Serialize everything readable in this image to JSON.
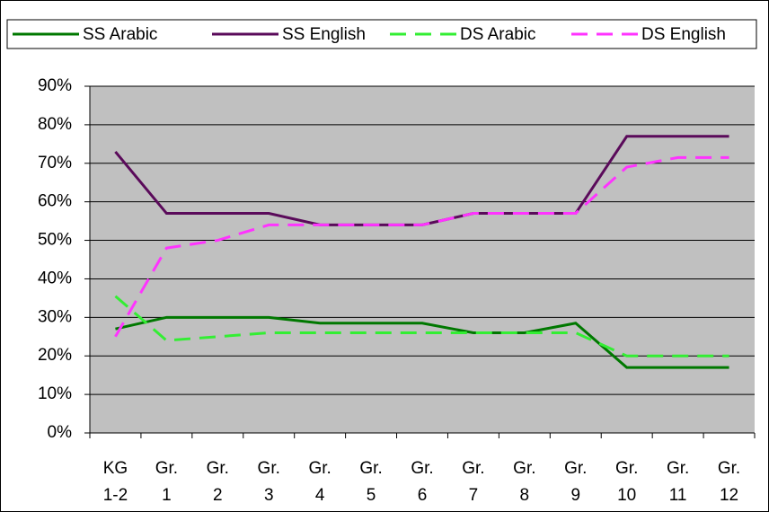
{
  "chart_data": {
    "type": "line",
    "categories": [
      "KG 1-2",
      "Gr. 1",
      "Gr. 2",
      "Gr. 3",
      "Gr. 4",
      "Gr. 5",
      "Gr. 6",
      "Gr. 7",
      "Gr. 8",
      "Gr. 9",
      "Gr. 10",
      "Gr. 11",
      "Gr. 12"
    ],
    "series": [
      {
        "name": "SS Arabic",
        "color": "#007800",
        "dashed": false,
        "values": [
          27,
          30,
          30,
          30,
          28.5,
          28.5,
          28.5,
          26,
          26,
          28.5,
          17,
          17,
          17
        ]
      },
      {
        "name": "SS English",
        "color": "#5a0a5a",
        "dashed": false,
        "values": [
          73,
          57,
          57,
          57,
          54,
          54,
          54,
          57,
          57,
          57,
          77,
          77,
          77
        ]
      },
      {
        "name": "DS Arabic",
        "color": "#33ee33",
        "dashed": true,
        "values": [
          35.5,
          24,
          25,
          26,
          26,
          26,
          26,
          26,
          26,
          26,
          20,
          20,
          20
        ]
      },
      {
        "name": "DS English",
        "color": "#ff33ff",
        "dashed": true,
        "values": [
          25,
          48,
          50,
          54,
          54,
          54,
          54,
          57,
          57,
          57,
          69,
          71.5,
          71.5
        ]
      }
    ],
    "ylim": [
      0,
      90
    ],
    "yticks": [
      {
        "value": 0,
        "label": "0%"
      },
      {
        "value": 10,
        "label": "10%"
      },
      {
        "value": 20,
        "label": "20%"
      },
      {
        "value": 30,
        "label": "30%"
      },
      {
        "value": 40,
        "label": "40%"
      },
      {
        "value": 50,
        "label": "50%"
      },
      {
        "value": 60,
        "label": "60%"
      },
      {
        "value": 70,
        "label": "70%"
      },
      {
        "value": 80,
        "label": "80%"
      },
      {
        "value": 90,
        "label": "90%"
      }
    ],
    "grid": true,
    "legend": "top"
  }
}
